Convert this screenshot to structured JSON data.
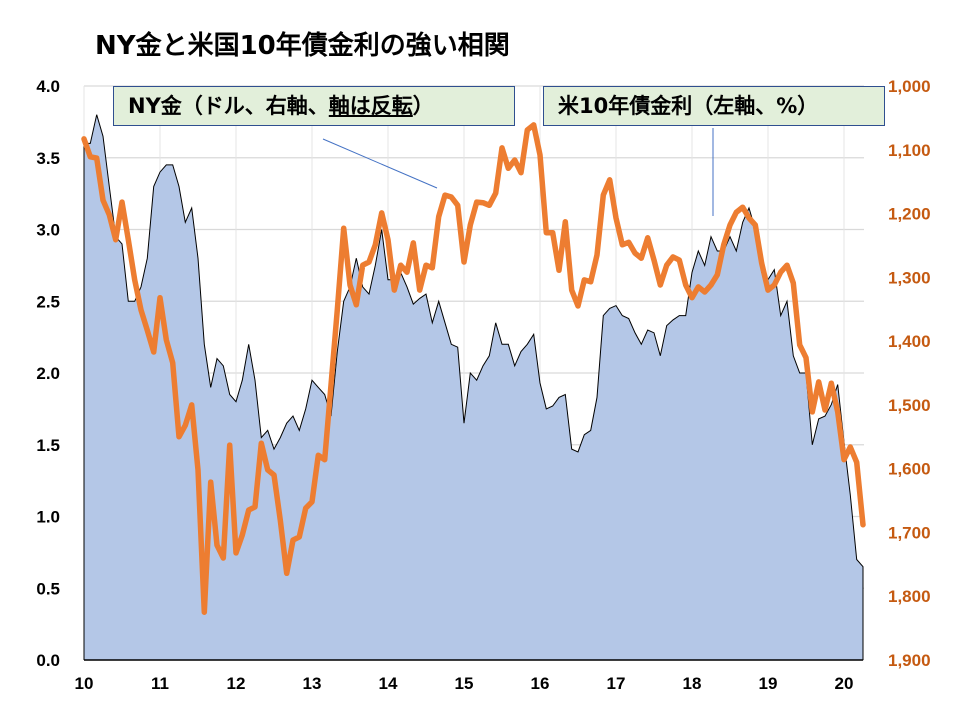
{
  "chart_data": {
    "type": "area+line",
    "title": "NY金と米国10年債金利の強い相関",
    "annotations": {
      "gold": {
        "prefix": "NY金（ドル、右軸、",
        "underlined": "軸は反転",
        "suffix": "）"
      },
      "yield": "米10年債金利（左軸、%）"
    },
    "x_tick_labels": [
      "10",
      "11",
      "12",
      "13",
      "14",
      "15",
      "16",
      "17",
      "18",
      "19",
      "20"
    ],
    "x_range": [
      "2010-01",
      "2020-04"
    ],
    "y_left": {
      "range": [
        0,
        4.0
      ],
      "ticks": [
        "0.0",
        "0.5",
        "1.0",
        "1.5",
        "2.0",
        "2.5",
        "3.0",
        "3.5",
        "4.0"
      ]
    },
    "y_right": {
      "range": [
        1000,
        1900
      ],
      "reversed": true,
      "ticks": [
        "1,000",
        "1,100",
        "1,200",
        "1,300",
        "1,400",
        "1,500",
        "1,600",
        "1,700",
        "1,800",
        "1,900"
      ]
    },
    "grid": "horizontal",
    "colors": {
      "yield_fill": "#b4c7e7",
      "yield_stroke": "#000000",
      "gold_line": "#ed7d31",
      "right_axis_text": "#c55a11",
      "annotation_fill": "#e2efda",
      "annotation_border": "#2f4f8f"
    },
    "x": [
      "2010-01",
      "2010-02",
      "2010-03",
      "2010-04",
      "2010-05",
      "2010-06",
      "2010-07",
      "2010-08",
      "2010-09",
      "2010-10",
      "2010-11",
      "2010-12",
      "2011-01",
      "2011-02",
      "2011-03",
      "2011-04",
      "2011-05",
      "2011-06",
      "2011-07",
      "2011-08",
      "2011-09",
      "2011-10",
      "2011-11",
      "2011-12",
      "2012-01",
      "2012-02",
      "2012-03",
      "2012-04",
      "2012-05",
      "2012-06",
      "2012-07",
      "2012-08",
      "2012-09",
      "2012-10",
      "2012-11",
      "2012-12",
      "2013-01",
      "2013-02",
      "2013-03",
      "2013-04",
      "2013-05",
      "2013-06",
      "2013-07",
      "2013-08",
      "2013-09",
      "2013-10",
      "2013-11",
      "2013-12",
      "2014-01",
      "2014-02",
      "2014-03",
      "2014-04",
      "2014-05",
      "2014-06",
      "2014-07",
      "2014-08",
      "2014-09",
      "2014-10",
      "2014-11",
      "2014-12",
      "2015-01",
      "2015-02",
      "2015-03",
      "2015-04",
      "2015-05",
      "2015-06",
      "2015-07",
      "2015-08",
      "2015-09",
      "2015-10",
      "2015-11",
      "2015-12",
      "2016-01",
      "2016-02",
      "2016-03",
      "2016-04",
      "2016-05",
      "2016-06",
      "2016-07",
      "2016-08",
      "2016-09",
      "2016-10",
      "2016-11",
      "2016-12",
      "2017-01",
      "2017-02",
      "2017-03",
      "2017-04",
      "2017-05",
      "2017-06",
      "2017-07",
      "2017-08",
      "2017-09",
      "2017-10",
      "2017-11",
      "2017-12",
      "2018-01",
      "2018-02",
      "2018-03",
      "2018-04",
      "2018-05",
      "2018-06",
      "2018-07",
      "2018-08",
      "2018-09",
      "2018-10",
      "2018-11",
      "2018-12",
      "2019-01",
      "2019-02",
      "2019-03",
      "2019-04",
      "2019-05",
      "2019-06",
      "2019-07",
      "2019-08",
      "2019-09",
      "2019-10",
      "2019-11",
      "2019-12",
      "2020-01",
      "2020-02",
      "2020-03",
      "2020-04"
    ],
    "series": [
      {
        "name": "米10年債金利",
        "axis": "left",
        "type": "area",
        "values": [
          3.6,
          3.6,
          3.8,
          3.65,
          3.3,
          2.95,
          2.9,
          2.5,
          2.5,
          2.6,
          2.8,
          3.3,
          3.4,
          3.45,
          3.45,
          3.3,
          3.05,
          3.15,
          2.8,
          2.2,
          1.9,
          2.1,
          2.05,
          1.85,
          1.8,
          1.95,
          2.2,
          1.95,
          1.55,
          1.6,
          1.47,
          1.55,
          1.65,
          1.7,
          1.6,
          1.75,
          1.95,
          1.9,
          1.85,
          1.7,
          2.15,
          2.5,
          2.6,
          2.8,
          2.6,
          2.55,
          2.75,
          3.0,
          2.65,
          2.65,
          2.7,
          2.6,
          2.48,
          2.52,
          2.55,
          2.35,
          2.5,
          2.35,
          2.2,
          2.18,
          1.65,
          2.0,
          1.95,
          2.05,
          2.12,
          2.35,
          2.2,
          2.2,
          2.05,
          2.15,
          2.2,
          2.27,
          1.93,
          1.75,
          1.77,
          1.83,
          1.85,
          1.47,
          1.45,
          1.57,
          1.6,
          1.83,
          2.4,
          2.45,
          2.47,
          2.4,
          2.38,
          2.28,
          2.2,
          2.3,
          2.28,
          2.12,
          2.33,
          2.37,
          2.4,
          2.4,
          2.7,
          2.85,
          2.75,
          2.95,
          2.85,
          2.85,
          2.95,
          2.85,
          3.05,
          3.15,
          3.0,
          2.7,
          2.65,
          2.72,
          2.4,
          2.5,
          2.12,
          2.0,
          2.0,
          1.5,
          1.68,
          1.7,
          1.78,
          1.92,
          1.52,
          1.15,
          0.7,
          0.65
        ]
      },
      {
        "name": "NY金",
        "axis": "right",
        "type": "line",
        "values": [
          1083,
          1111,
          1113,
          1179,
          1202,
          1241,
          1182,
          1241,
          1304,
          1351,
          1383,
          1417,
          1332,
          1398,
          1434,
          1550,
          1532,
          1500,
          1602,
          1825,
          1621,
          1720,
          1740,
          1563,
          1732,
          1704,
          1665,
          1660,
          1560,
          1602,
          1610,
          1681,
          1764,
          1712,
          1707,
          1662,
          1652,
          1579,
          1586,
          1469,
          1351,
          1223,
          1312,
          1343,
          1281,
          1276,
          1249,
          1199,
          1241,
          1320,
          1281,
          1292,
          1246,
          1320,
          1281,
          1285,
          1205,
          1171,
          1174,
          1187,
          1276,
          1218,
          1182,
          1183,
          1187,
          1168,
          1097,
          1129,
          1116,
          1136,
          1069,
          1061,
          1108,
          1230,
          1230,
          1289,
          1213,
          1320,
          1345,
          1304,
          1307,
          1265,
          1171,
          1147,
          1207,
          1249,
          1245,
          1262,
          1270,
          1238,
          1273,
          1312,
          1281,
          1268,
          1273,
          1312,
          1332,
          1315,
          1323,
          1312,
          1296,
          1249,
          1218,
          1198,
          1190,
          1207,
          1218,
          1278,
          1320,
          1312,
          1292,
          1281,
          1309,
          1406,
          1426,
          1511,
          1464,
          1508,
          1466,
          1511,
          1586,
          1566,
          1590,
          1688
        ]
      }
    ]
  }
}
